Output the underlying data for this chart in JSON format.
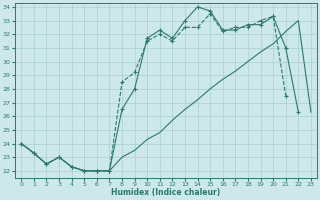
{
  "xlabel": "Humidex (Indice chaleur)",
  "xlim": [
    -0.5,
    23.5
  ],
  "ylim": [
    21.5,
    34.3
  ],
  "yticks": [
    22,
    23,
    24,
    25,
    26,
    27,
    28,
    29,
    30,
    31,
    32,
    33,
    34
  ],
  "xticks": [
    0,
    1,
    2,
    3,
    4,
    5,
    6,
    7,
    8,
    9,
    10,
    11,
    12,
    13,
    14,
    15,
    16,
    17,
    18,
    19,
    20,
    21,
    22,
    23
  ],
  "bg_color": "#cce8e8",
  "grid_color": "#aacfcf",
  "line_color": "#2a7a6a",
  "line1_x": [
    0,
    1,
    2,
    3,
    4,
    5,
    6,
    7,
    8,
    9,
    10,
    11,
    12,
    13,
    14,
    15,
    16,
    17,
    18,
    19,
    20,
    21
  ],
  "line1_y": [
    24.0,
    23.3,
    22.5,
    23.0,
    22.3,
    22.0,
    22.0,
    22.0,
    28.5,
    29.2,
    31.5,
    32.0,
    31.5,
    32.5,
    32.5,
    33.5,
    32.2,
    32.5,
    32.5,
    33.0,
    33.3,
    27.5
  ],
  "line2_x": [
    0,
    1,
    2,
    3,
    4,
    5,
    6,
    7,
    8,
    9,
    10,
    11,
    12,
    13,
    14,
    15,
    16,
    17,
    18,
    19,
    20,
    21,
    22
  ],
  "line2_y": [
    24.0,
    23.3,
    22.5,
    23.0,
    22.3,
    22.0,
    22.0,
    22.0,
    26.5,
    28.0,
    31.7,
    32.3,
    31.7,
    33.0,
    34.0,
    33.7,
    32.3,
    32.3,
    32.7,
    32.7,
    33.3,
    31.0,
    26.3
  ],
  "line3_x": [
    0,
    1,
    2,
    3,
    4,
    5,
    6,
    7,
    8,
    9,
    10,
    11,
    12,
    13,
    14,
    15,
    16,
    17,
    18,
    19,
    20,
    21,
    22,
    23
  ],
  "line3_y": [
    24.0,
    23.3,
    22.5,
    23.0,
    22.3,
    22.0,
    22.0,
    22.0,
    23.0,
    23.5,
    24.3,
    24.8,
    25.7,
    26.5,
    27.2,
    28.0,
    28.7,
    29.3,
    30.0,
    30.7,
    31.3,
    32.2,
    33.0,
    26.3
  ]
}
